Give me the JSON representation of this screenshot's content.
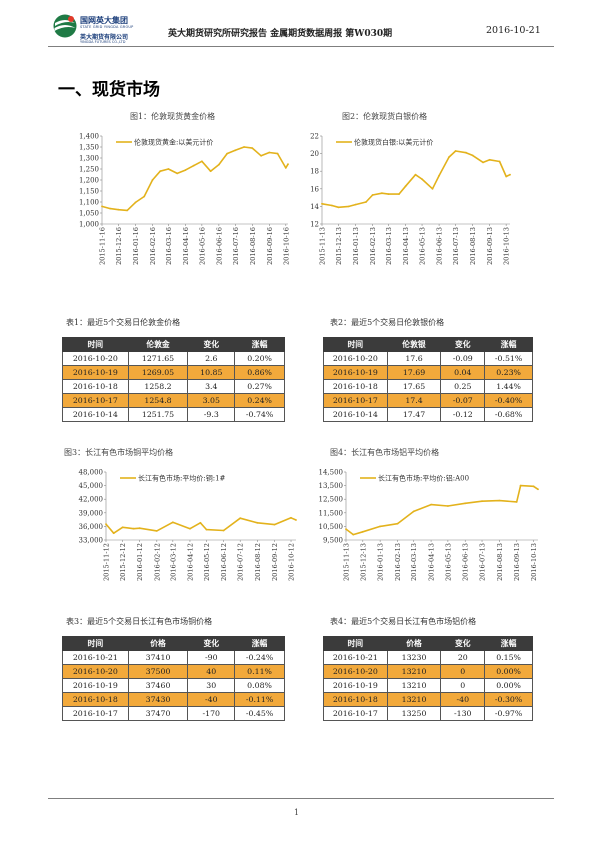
{
  "header": {
    "logo": {
      "cn_group": "国网英大集团",
      "en_group": "STATE GRID YINGDA GROUP",
      "cn_company": "英大期货有限公司",
      "en_company": "YINGDA FUTURES CO.,LTD"
    },
    "report_title": "英大期货研究所研究报告   金属期货数据周报   第W030期",
    "date": "2016-10-21"
  },
  "section_title": "一、现货市场",
  "charts": [
    {
      "caption": "图1：伦敦现货黄金价格"
    },
    {
      "caption": "图2：伦敦现货白银价格"
    },
    {
      "caption": "图3：长江有色市场铜平均价格"
    },
    {
      "caption": "图4：长江有色市场铝平均价格"
    }
  ],
  "chart_data": [
    {
      "type": "line",
      "legend": "伦敦现货黄金:以美元计价",
      "color": "#e3b21c",
      "ylim": [
        1000,
        1400
      ],
      "yticks": [
        "1,400",
        "1,350",
        "1,300",
        "1,250",
        "1,200",
        "1,150",
        "1,100",
        "1,050",
        "1,000"
      ],
      "xticks": [
        "2015-11-16",
        "2015-12-16",
        "2016-01-16",
        "2016-02-16",
        "2016-03-16",
        "2016-04-16",
        "2016-05-16",
        "2016-06-16",
        "2016-07-16",
        "2016-08-16",
        "2016-09-16",
        "2016-10-16"
      ],
      "x": [
        "2015-11-16",
        "2015-12-01",
        "2015-12-16",
        "2016-01-01",
        "2016-01-16",
        "2016-02-01",
        "2016-02-16",
        "2016-03-01",
        "2016-03-16",
        "2016-04-01",
        "2016-04-16",
        "2016-05-01",
        "2016-05-16",
        "2016-06-01",
        "2016-06-16",
        "2016-07-01",
        "2016-07-16",
        "2016-08-01",
        "2016-08-16",
        "2016-09-01",
        "2016-09-16",
        "2016-10-01",
        "2016-10-16",
        "2016-10-20"
      ],
      "values": [
        1080,
        1070,
        1065,
        1062,
        1098,
        1125,
        1200,
        1240,
        1250,
        1230,
        1245,
        1265,
        1285,
        1240,
        1270,
        1320,
        1335,
        1350,
        1345,
        1310,
        1325,
        1320,
        1255,
        1272
      ]
    },
    {
      "type": "line",
      "legend": "伦敦现货白银:以美元计价",
      "color": "#e3b21c",
      "ylim": [
        12,
        22
      ],
      "yticks": [
        "22",
        "20",
        "18",
        "16",
        "14",
        "12"
      ],
      "xticks": [
        "2015-11-13",
        "2015-12-13",
        "2016-01-13",
        "2016-02-13",
        "2016-03-13",
        "2016-04-13",
        "2016-05-13",
        "2016-06-13",
        "2016-07-13",
        "2016-08-13",
        "2016-09-13",
        "2016-10-13"
      ],
      "x": [
        "2015-11-13",
        "2015-12-01",
        "2015-12-13",
        "2016-01-01",
        "2016-01-13",
        "2016-02-01",
        "2016-02-13",
        "2016-03-01",
        "2016-03-13",
        "2016-04-01",
        "2016-04-13",
        "2016-05-01",
        "2016-05-13",
        "2016-06-01",
        "2016-06-13",
        "2016-07-01",
        "2016-07-13",
        "2016-08-01",
        "2016-08-13",
        "2016-09-01",
        "2016-09-13",
        "2016-10-01",
        "2016-10-13",
        "2016-10-20"
      ],
      "values": [
        14.3,
        14.1,
        13.9,
        14.0,
        14.2,
        14.5,
        15.3,
        15.5,
        15.4,
        15.4,
        16.3,
        17.6,
        17.1,
        16.0,
        17.5,
        19.6,
        20.3,
        20.1,
        19.8,
        19.0,
        19.3,
        19.1,
        17.4,
        17.6
      ]
    },
    {
      "type": "line",
      "legend": "长江有色市场:平均价:铜:1#",
      "color": "#e3b21c",
      "ylim": [
        33000,
        48000
      ],
      "yticks": [
        "48,000",
        "45,000",
        "42,000",
        "39,000",
        "36,000",
        "33,000"
      ],
      "xticks": [
        "2015-11-12",
        "2015-12-12",
        "2016-01-12",
        "2016-02-12",
        "2016-03-12",
        "2016-04-12",
        "2016-05-12",
        "2016-06-12",
        "2016-07-12",
        "2016-08-12",
        "2016-09-12",
        "2016-10-12"
      ],
      "x": [
        "2015-11-12",
        "2015-11-26",
        "2015-12-12",
        "2016-01-01",
        "2016-01-12",
        "2016-02-12",
        "2016-03-12",
        "2016-04-12",
        "2016-05-01",
        "2016-05-12",
        "2016-06-12",
        "2016-07-12",
        "2016-08-12",
        "2016-09-12",
        "2016-10-12",
        "2016-10-21"
      ],
      "values": [
        36500,
        34500,
        35800,
        35500,
        35600,
        35000,
        36900,
        35500,
        36800,
        35300,
        35100,
        37800,
        36800,
        36400,
        37900,
        37410
      ]
    },
    {
      "type": "line",
      "legend": "长江有色市场:平均价:铝:A00",
      "color": "#e3b21c",
      "ylim": [
        9500,
        14500
      ],
      "yticks": [
        "14,500",
        "13,500",
        "12,500",
        "11,500",
        "10,500",
        "9,500"
      ],
      "xticks": [
        "2015-11-13",
        "2015-12-13",
        "2016-01-13",
        "2016-02-13",
        "2016-03-13",
        "2016-04-13",
        "2016-05-13",
        "2016-06-13",
        "2016-07-13",
        "2016-08-13",
        "2016-09-13",
        "2016-10-13"
      ],
      "x": [
        "2015-11-13",
        "2015-11-26",
        "2015-12-13",
        "2016-01-13",
        "2016-02-13",
        "2016-03-13",
        "2016-04-13",
        "2016-05-13",
        "2016-06-13",
        "2016-07-13",
        "2016-08-13",
        "2016-09-13",
        "2016-09-20",
        "2016-10-13",
        "2016-10-21"
      ],
      "values": [
        10300,
        9900,
        10100,
        10500,
        10700,
        11600,
        12100,
        12000,
        12200,
        12350,
        12400,
        12300,
        13500,
        13450,
        13230
      ]
    }
  ],
  "tables": [
    {
      "caption": "表1：最近5个交易日伦敦金价格",
      "headers": [
        "时间",
        "伦敦金",
        "变化",
        "涨幅"
      ],
      "rows": [
        [
          "2016-10-20",
          "1271.65",
          "2.6",
          "0.20%"
        ],
        [
          "2016-10-19",
          "1269.05",
          "10.85",
          "0.86%"
        ],
        [
          "2016-10-18",
          "1258.2",
          "3.4",
          "0.27%"
        ],
        [
          "2016-10-17",
          "1254.8",
          "3.05",
          "0.24%"
        ],
        [
          "2016-10-14",
          "1251.75",
          "-9.3",
          "-0.74%"
        ]
      ]
    },
    {
      "caption": "表2：最近5个交易日伦敦银价格",
      "headers": [
        "时间",
        "伦敦银",
        "变化",
        "涨幅"
      ],
      "rows": [
        [
          "2016-10-20",
          "17.6",
          "-0.09",
          "-0.51%"
        ],
        [
          "2016-10-19",
          "17.69",
          "0.04",
          "0.23%"
        ],
        [
          "2016-10-18",
          "17.65",
          "0.25",
          "1.44%"
        ],
        [
          "2016-10-17",
          "17.4",
          "-0.07",
          "-0.40%"
        ],
        [
          "2016-10-14",
          "17.47",
          "-0.12",
          "-0.68%"
        ]
      ]
    },
    {
      "caption": "表3：最近5个交易日长江有色市场铜价格",
      "headers": [
        "时间",
        "价格",
        "变化",
        "涨幅"
      ],
      "rows": [
        [
          "2016-10-21",
          "37410",
          "-90",
          "-0.24%"
        ],
        [
          "2016-10-20",
          "37500",
          "40",
          "0.11%"
        ],
        [
          "2016-10-19",
          "37460",
          "30",
          "0.08%"
        ],
        [
          "2016-10-18",
          "37430",
          "-40",
          "-0.11%"
        ],
        [
          "2016-10-17",
          "37470",
          "-170",
          "-0.45%"
        ]
      ]
    },
    {
      "caption": "表4：最近5个交易日长江有色市场铝价格",
      "headers": [
        "时间",
        "价格",
        "变化",
        "涨幅"
      ],
      "rows": [
        [
          "2016-10-21",
          "13230",
          "20",
          "0.15%"
        ],
        [
          "2016-10-20",
          "13210",
          "0",
          "0.00%"
        ],
        [
          "2016-10-19",
          "13210",
          "0",
          "0.00%"
        ],
        [
          "2016-10-18",
          "13210",
          "-40",
          "-0.30%"
        ],
        [
          "2016-10-17",
          "13250",
          "-130",
          "-0.97%"
        ]
      ]
    }
  ],
  "page_number": "1"
}
